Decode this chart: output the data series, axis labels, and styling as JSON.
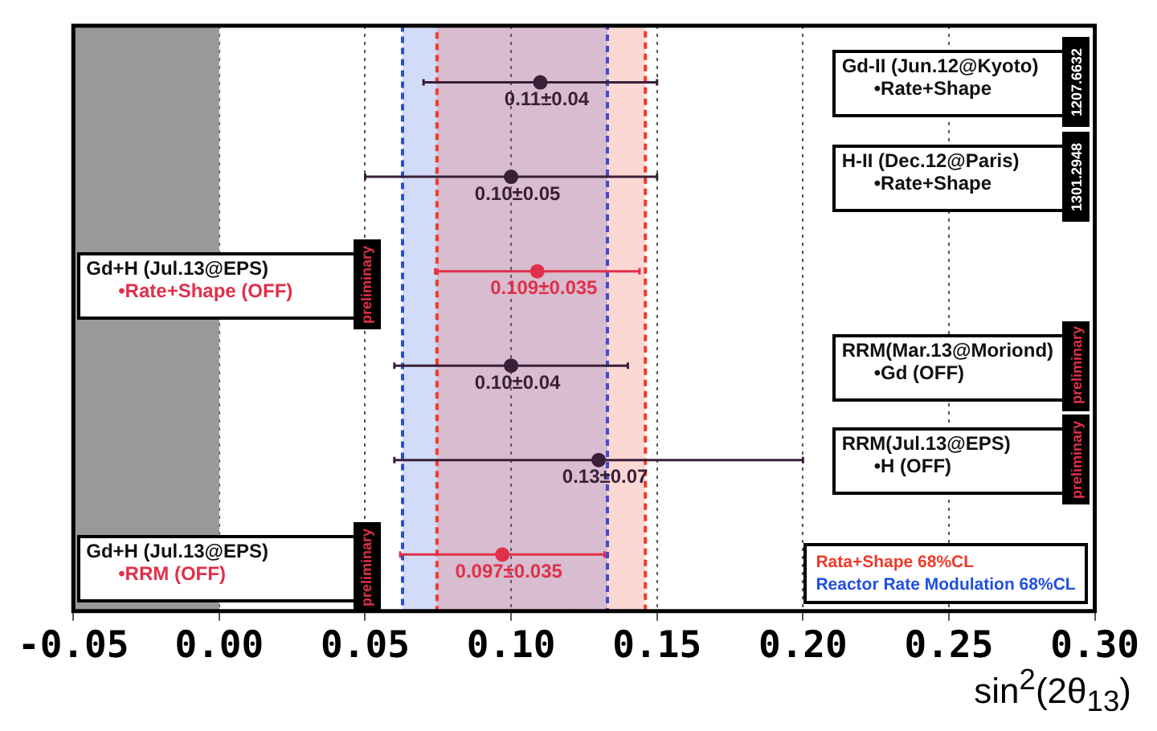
{
  "chart_data": {
    "type": "scatter",
    "orientation": "horizontal",
    "xlabel": "sin$^{2}$(2θ$_{13}$)",
    "categories": [
      null,
      null,
      null,
      null,
      null,
      null
    ],
    "values": [
      0.11,
      0.1,
      0.109,
      0.1,
      0.13,
      0.097
    ],
    "errors": [
      0.04,
      0.05,
      0.035,
      0.04,
      0.07,
      0.035
    ],
    "colors": [
      "#3a1f38",
      "#3a1f38",
      "#e0304a",
      "#3a1f38",
      "#3a1f38",
      "#e0304a"
    ],
    "value_labels": [
      "0.11±0.04",
      "0.10±0.05",
      "0.109±0.035",
      "0.10±0.04",
      "0.13±0.07",
      "0.097±0.035"
    ],
    "xlim": [
      -0.05,
      0.3
    ],
    "xticks": [
      -0.05,
      {
        "value": 0,
        "label": "0.00"
      },
      0.05,
      {
        "value": 0.1,
        "label": "0.10"
      },
      0.15,
      {
        "value": 0.2,
        "label": "0.20"
      },
      0.25,
      {
        "value": 0.3,
        "label": "0.30"
      }
    ],
    "grid": "x",
    "marker": "circle",
    "legend": "bottom right",
    "bands": [
      {
        "axis": "x",
        "from": -0.05,
        "to": 0,
        "color": "#999999"
      },
      {
        "axis": "x",
        "from": 0.0628,
        "to": 0.133,
        "color": "#2050e0",
        "label": "Reactor Rate Modulation 68%CL"
      },
      {
        "axis": "x",
        "from": 0.0746,
        "to": 0.146,
        "color": "#f03a2a",
        "label": "Rata+Shape 68%CL"
      }
    ],
    "annotations": [
      "Gd-II (Jun.12@Kyoto)\n•Rate+Shape",
      "H-II (Dec.12@Paris)\n•Rate+Shape",
      "Gd+H (Jul.13@EPS)\n•Rate+Shape (OFF)",
      "RRM(Mar.13@Moriond)\n•Gd (OFF)",
      "RRM(Jul.13@EPS)\n•H (OFF)",
      "Gd+H (Jul.13@EPS)\n•RRM (OFF)",
      "1207.6632",
      "1301.2948",
      "preliminary",
      "preliminary",
      "preliminary",
      "preliminary"
    ]
  }
}
